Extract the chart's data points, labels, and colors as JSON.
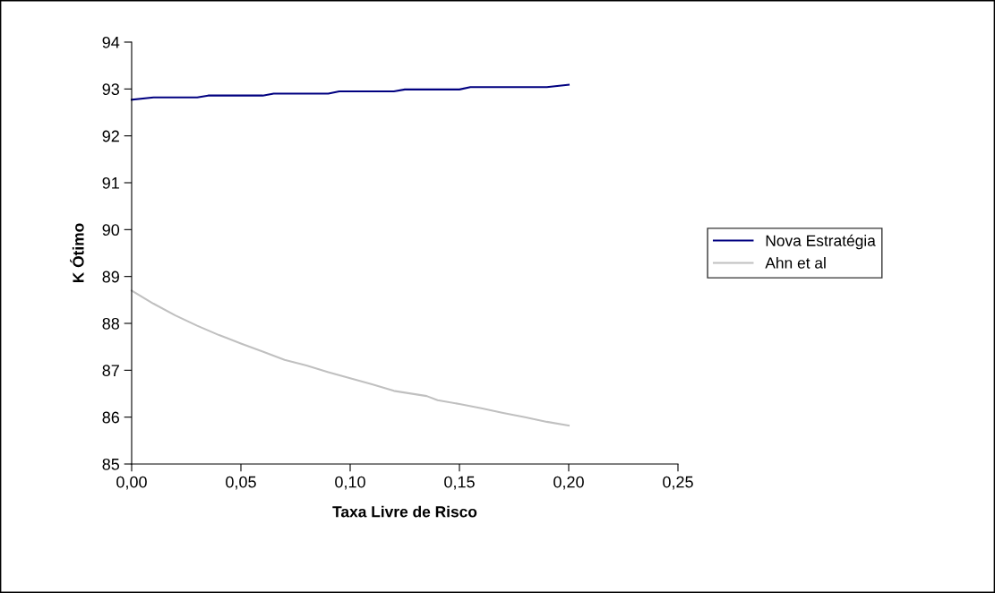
{
  "chart_data": {
    "type": "line",
    "xlabel": "Taxa Livre de Risco",
    "ylabel": "K Ótimo",
    "xlim": [
      0,
      0.25
    ],
    "ylim": [
      85,
      94
    ],
    "xticks": [
      {
        "value": 0,
        "label": "0,00"
      },
      {
        "value": 0.05,
        "label": "0,05"
      },
      {
        "value": 0.1,
        "label": "0,10"
      },
      {
        "value": 0.15,
        "label": "0,15"
      },
      {
        "value": 0.2,
        "label": "0,20"
      },
      {
        "value": 0.25,
        "label": "0,25"
      }
    ],
    "yticks": [
      85,
      86,
      87,
      88,
      89,
      90,
      91,
      92,
      93,
      94
    ],
    "grid": false,
    "legend": "right",
    "marker": "none",
    "line_style": "solid",
    "series": [
      {
        "name": "Nova Estratégia",
        "color": "#000080",
        "x": [
          0,
          0.01,
          0.03,
          0.035,
          0.06,
          0.065,
          0.09,
          0.095,
          0.12,
          0.125,
          0.15,
          0.155,
          0.19,
          0.2
        ],
        "values": [
          92.77,
          92.82,
          92.82,
          92.86,
          92.86,
          92.9,
          92.9,
          92.95,
          92.95,
          92.99,
          92.99,
          93.04,
          93.04,
          93.09
        ]
      },
      {
        "name": "Ahn et al",
        "color": "#c0c0c0",
        "x": [
          0,
          0.01,
          0.02,
          0.03,
          0.04,
          0.05,
          0.06,
          0.07,
          0.08,
          0.09,
          0.1,
          0.11,
          0.12,
          0.135,
          0.14,
          0.15,
          0.16,
          0.17,
          0.18,
          0.19,
          0.2
        ],
        "values": [
          88.7,
          88.42,
          88.17,
          87.95,
          87.75,
          87.57,
          87.4,
          87.22,
          87.1,
          86.96,
          86.83,
          86.7,
          86.56,
          86.45,
          86.36,
          86.28,
          86.19,
          86.09,
          86.0,
          85.9,
          85.82
        ]
      }
    ]
  }
}
